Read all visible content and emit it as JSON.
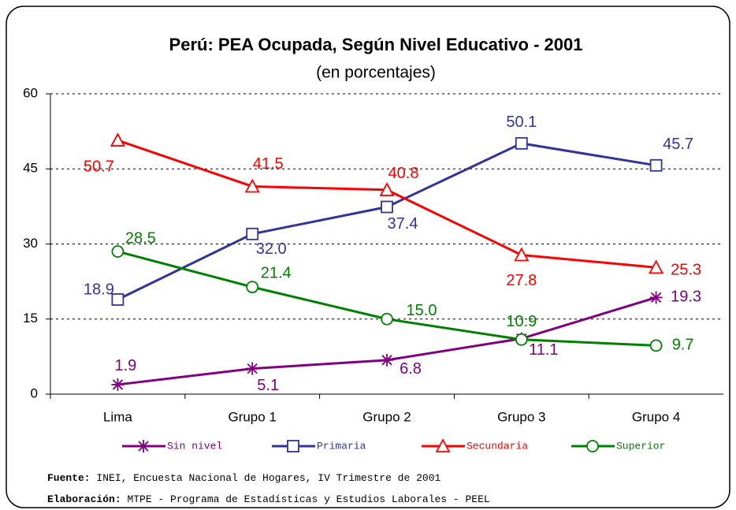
{
  "chart_data": {
    "type": "line",
    "title": "Perú: PEA Ocupada, Según Nivel Educativo - 2001",
    "subtitle": "(en porcentajes)",
    "categories": [
      "Lima",
      "Grupo 1",
      "Grupo 2",
      "Grupo 3",
      "Grupo 4"
    ],
    "series": [
      {
        "name": "Sin nivel",
        "color": "#800080",
        "marker": "star",
        "values": [
          1.9,
          5.1,
          6.8,
          11.1,
          19.3
        ],
        "value_labels": [
          "1.9",
          "5.1",
          "6.8",
          "11.1",
          "19.3"
        ]
      },
      {
        "name": "Primaria",
        "color": "#333399",
        "marker": "square",
        "values": [
          18.9,
          32.0,
          37.4,
          50.1,
          45.7
        ],
        "value_labels": [
          "18.9",
          "32.0",
          "37.4",
          "50.1",
          "45.7"
        ]
      },
      {
        "name": "Secundaria",
        "color": "#ff0000",
        "marker": "triangle",
        "values": [
          50.7,
          41.5,
          40.8,
          27.8,
          25.3
        ],
        "value_labels": [
          "50.7",
          "41.5",
          "40.8",
          "27.8",
          "25.3"
        ]
      },
      {
        "name": "Superior",
        "color": "#008000",
        "marker": "circle",
        "values": [
          28.5,
          21.4,
          15.0,
          10.9,
          9.7
        ],
        "value_labels": [
          "28.5",
          "21.4",
          "15.0",
          "10.9",
          "9.7"
        ]
      }
    ],
    "ylim": [
      0,
      60
    ],
    "yticks": [
      0,
      15,
      30,
      45,
      60
    ],
    "grid": true,
    "source_label": "Fuente:",
    "source": "INEI, Encuesta Nacional de Hogares, IV Trimestre de 2001",
    "credit_label": "Elaboración:",
    "credit": "MTPE - Programa de Estadísticas y Estudios Laborales - PEEL"
  }
}
